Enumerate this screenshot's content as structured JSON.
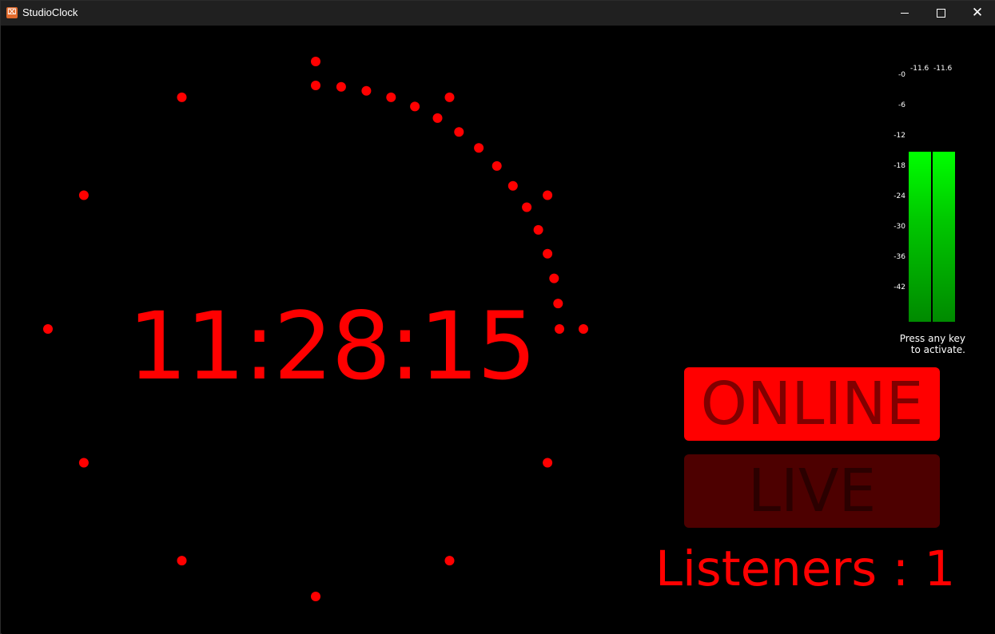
{
  "window": {
    "title": "StudioClock",
    "icon": "app-logo-icon",
    "controls": {
      "minimize_icon": "minimize-icon",
      "maximize_icon": "maximize-icon",
      "close_icon": "close-icon",
      "close_glyph": "✕"
    }
  },
  "clock": {
    "time": "11:28:15",
    "color": "#ff0000",
    "hour_markers": 12,
    "seconds_elapsed": 15
  },
  "vu_meter": {
    "left_peak": "-11.6",
    "right_peak": "-11.6",
    "scale": [
      "-0",
      "-6",
      "-12",
      "-18",
      "-24",
      "-30",
      "-36",
      "-42"
    ],
    "left_level_db": -15,
    "right_level_db": -15,
    "hint": "Press any key to activate.",
    "hint_line1": "Press any key",
    "hint_line2": "to activate."
  },
  "status": {
    "online_label": "ONLINE",
    "online_active": true,
    "live_label": "LIVE",
    "live_active": false,
    "active_color": "#ff0000",
    "inactive_color": "#4d0000"
  },
  "listeners": {
    "text": "Listeners : 1",
    "count": 1
  }
}
